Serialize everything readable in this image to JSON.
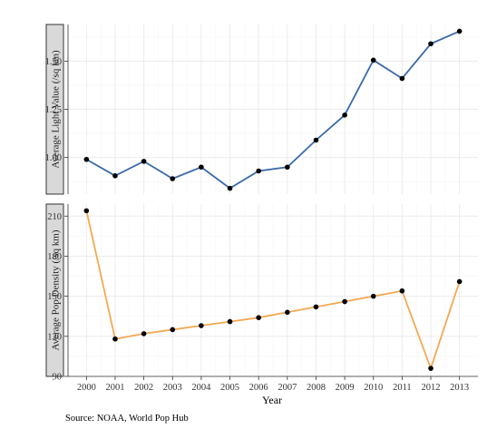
{
  "chart_data": {
    "type": "line",
    "layout": "two vertically stacked panels with shared x axis",
    "xlabel": "Year",
    "caption": "Source: NOAA, World Pop Hub",
    "x": [
      2000,
      2001,
      2002,
      2003,
      2004,
      2005,
      2006,
      2007,
      2008,
      2009,
      2010,
      2011,
      2012,
      2013
    ],
    "grid": true,
    "panels": [
      {
        "strip_label": "Average Light Value (/sq km)",
        "color": "#3a6aa8",
        "values": [
          0.99,
          0.905,
          0.98,
          0.89,
          0.95,
          0.84,
          0.93,
          0.95,
          1.09,
          1.22,
          1.505,
          1.41,
          1.59,
          1.655
        ],
        "ylim": [
          0.81,
          1.69
        ],
        "yticks": [
          1.0,
          1.25,
          1.5
        ],
        "ytick_labels": [
          "1.00",
          "1.25",
          "1.50"
        ]
      },
      {
        "strip_label": "Average Pop Density (/sq km)",
        "color": "#f2a953",
        "values": [
          214,
          118,
          122,
          125,
          128,
          131,
          134,
          138,
          142,
          146,
          150,
          154,
          96,
          161
        ],
        "ylim": [
          90,
          219
        ],
        "yticks": [
          90,
          120,
          150,
          180,
          210
        ],
        "ytick_labels": [
          "90",
          "120",
          "150",
          "180",
          "210"
        ]
      }
    ]
  }
}
